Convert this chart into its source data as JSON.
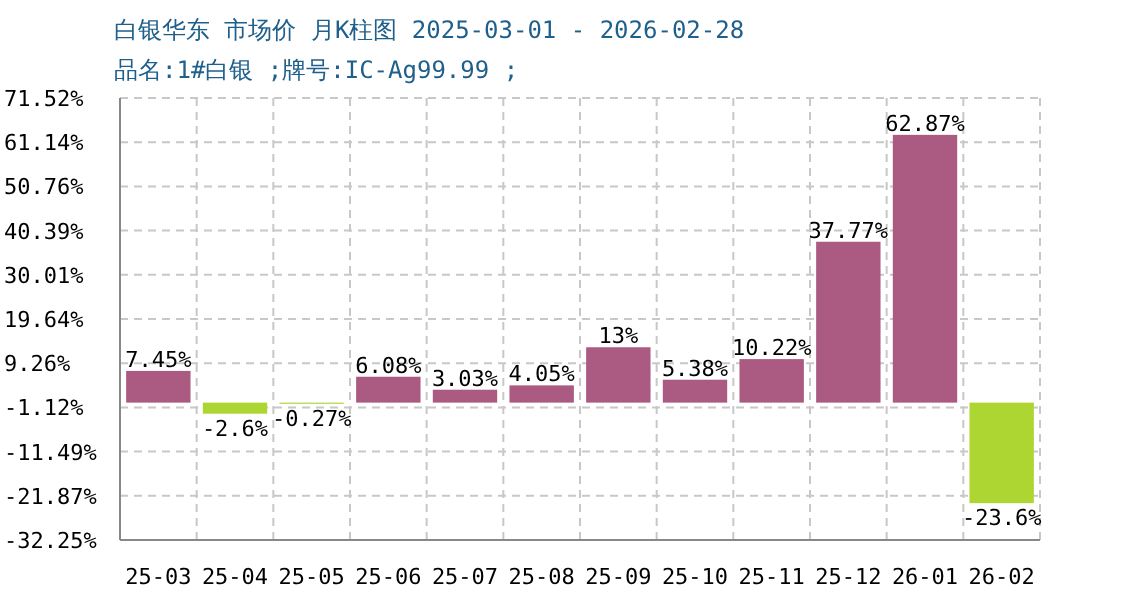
{
  "chart_data": {
    "type": "bar",
    "title": "白银华东 市场价 月K柱图 2025-03-01 - 2026-02-28",
    "subtitle": "品名:1#白银 ;牌号:IC-Ag99.99 ;",
    "categories": [
      "25-03",
      "25-04",
      "25-05",
      "25-06",
      "25-07",
      "25-08",
      "25-09",
      "25-10",
      "25-11",
      "25-12",
      "26-01",
      "26-02"
    ],
    "values": [
      7.45,
      -2.6,
      -0.27,
      6.08,
      3.03,
      4.05,
      13,
      5.38,
      10.22,
      37.77,
      62.87,
      -23.6
    ],
    "colors": [
      "#ab5a82",
      "#add633",
      "#add633",
      "#ab5a82",
      "#ab5a82",
      "#ab5a82",
      "#ab5a82",
      "#ab5a82",
      "#ab5a82",
      "#ab5a82",
      "#ab5a82",
      "#add633"
    ],
    "value_labels": [
      "7.45%",
      "-2.6%",
      "-0.27%",
      "6.08%",
      "3.03%",
      "4.05%",
      "13%",
      "5.38%",
      "10.22%",
      "37.77%",
      "62.87%",
      "-23.6%"
    ],
    "ylim": [
      -32.25,
      71.52
    ],
    "yticks": [
      {
        "value": 71.52,
        "label": "71.52%"
      },
      {
        "value": 61.14,
        "label": "61.14%"
      },
      {
        "value": 50.76,
        "label": "50.76%"
      },
      {
        "value": 40.39,
        "label": "40.39%"
      },
      {
        "value": 30.01,
        "label": "30.01%"
      },
      {
        "value": 19.64,
        "label": "19.64%"
      },
      {
        "value": 9.26,
        "label": "9.26%"
      },
      {
        "value": -1.12,
        "label": "-1.12%"
      },
      {
        "value": -11.49,
        "label": "-11.49%"
      },
      {
        "value": -21.87,
        "label": "-21.87%"
      },
      {
        "value": -32.25,
        "label": "-32.25%"
      }
    ],
    "grid": true
  }
}
